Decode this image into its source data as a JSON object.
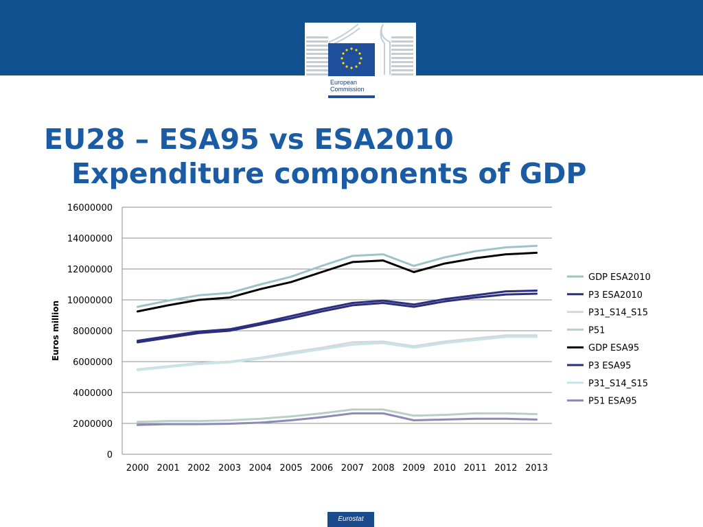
{
  "header": {
    "logo_text_line1": "European",
    "logo_text_line2": "Commission",
    "brand_color": "#11508f"
  },
  "slide": {
    "title_line1": "EU28 – ESA95 vs ESA2010",
    "title_line2": "Expenditure components of GDP"
  },
  "footer": {
    "label": "Eurostat"
  },
  "chart_data": {
    "type": "line",
    "title": "",
    "xlabel": "",
    "ylabel": "Euros million",
    "ylim": [
      0,
      16000000
    ],
    "yticks": [
      0,
      2000000,
      4000000,
      6000000,
      8000000,
      10000000,
      12000000,
      14000000,
      16000000
    ],
    "grid": true,
    "legend_position": "right",
    "categories": [
      "2000",
      "2001",
      "2002",
      "2003",
      "2004",
      "2005",
      "2006",
      "2007",
      "2008",
      "2009",
      "2010",
      "2011",
      "2012",
      "2013"
    ],
    "series": [
      {
        "name": "GDP ESA2010",
        "color": "#9fc2c6",
        "values": [
          9550000,
          9950000,
          10300000,
          10450000,
          11000000,
          11500000,
          12200000,
          12850000,
          12950000,
          12200000,
          12750000,
          13150000,
          13400000,
          13500000
        ]
      },
      {
        "name": "P3 ESA2010",
        "color": "#2a2f80",
        "values": [
          7350000,
          7650000,
          7950000,
          8100000,
          8500000,
          8950000,
          9400000,
          9800000,
          9950000,
          9700000,
          10050000,
          10300000,
          10550000,
          10600000
        ]
      },
      {
        "name": "P31_S14_S15",
        "color": "#d6d6dc",
        "values": [
          5500000,
          5700000,
          5900000,
          6000000,
          6250000,
          6600000,
          6900000,
          7250000,
          7300000,
          7000000,
          7300000,
          7500000,
          7700000,
          7700000
        ]
      },
      {
        "name": "P51",
        "color": "#b7cfc6",
        "values": [
          2100000,
          2150000,
          2150000,
          2200000,
          2300000,
          2450000,
          2650000,
          2900000,
          2900000,
          2500000,
          2550000,
          2650000,
          2650000,
          2600000
        ]
      },
      {
        "name": "GDP ESA95",
        "color": "#000000",
        "values": [
          9250000,
          9650000,
          10000000,
          10150000,
          10700000,
          11150000,
          11800000,
          12450000,
          12550000,
          11800000,
          12350000,
          12700000,
          12950000,
          13050000
        ]
      },
      {
        "name": "P3 ESA95",
        "color": "#2b2e7a",
        "values": [
          7250000,
          7550000,
          7850000,
          8000000,
          8400000,
          8800000,
          9250000,
          9650000,
          9800000,
          9550000,
          9900000,
          10150000,
          10350000,
          10400000
        ]
      },
      {
        "name": "P31_S14_S15",
        "color": "#c7e4e6",
        "values": [
          5450000,
          5650000,
          5850000,
          5950000,
          6200000,
          6500000,
          6800000,
          7100000,
          7200000,
          6900000,
          7200000,
          7400000,
          7600000,
          7600000
        ]
      },
      {
        "name": "P51 ESA95",
        "color": "#8a8ab8",
        "values": [
          1900000,
          1950000,
          1950000,
          1980000,
          2050000,
          2200000,
          2400000,
          2650000,
          2650000,
          2200000,
          2250000,
          2300000,
          2300000,
          2250000
        ]
      }
    ]
  }
}
